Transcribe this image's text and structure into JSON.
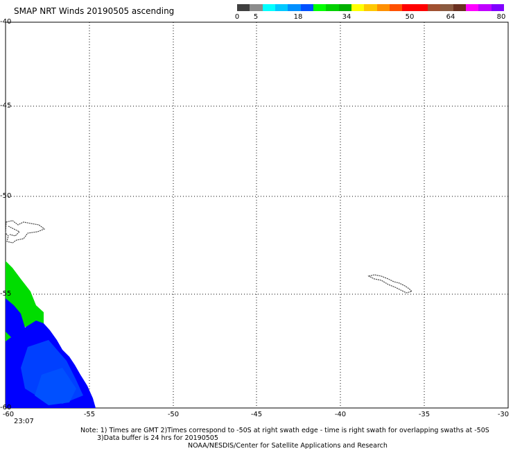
{
  "header": {
    "title": "SMAP NRT Winds 20190505 ascending"
  },
  "legend": {
    "colors": [
      "#404040",
      "#8c8c8c",
      "#00ffff",
      "#00c8ff",
      "#0090ff",
      "#0050ff",
      "#00ff00",
      "#00d000",
      "#00b000",
      "#ffff00",
      "#ffc800",
      "#ff9000",
      "#ff5000",
      "#ff0000",
      "#ff0000",
      "#a05030",
      "#8a5a40",
      "#6a3020",
      "#ff00ff",
      "#c000ff",
      "#8000ff"
    ],
    "ticks": [
      "0",
      "5",
      "18",
      "34",
      "50",
      "64",
      "80"
    ]
  },
  "map": {
    "lon_range": [
      -60,
      -30
    ],
    "lat_range": [
      -60,
      -40
    ],
    "lon_ticks": [
      "-60",
      "-55",
      "-50",
      "-45",
      "-40",
      "-35",
      "-30"
    ],
    "lat_ticks": [
      "-40",
      "-45",
      "-50",
      "-55",
      "-60"
    ],
    "grid": true,
    "time_label": "23:07",
    "swath_colors": [
      "#0000ff",
      "#00dd00"
    ]
  },
  "footer": {
    "note_line1": "Note: 1) Times are GMT 2)Times correspond to -50S at right swath edge - time is right swath for overlapping swaths at -50S",
    "note_line2": "3)Data buffer is 24 hrs for 20190505",
    "credit": "NOAA/NESDIS/Center for Satellite Applications and Research"
  }
}
